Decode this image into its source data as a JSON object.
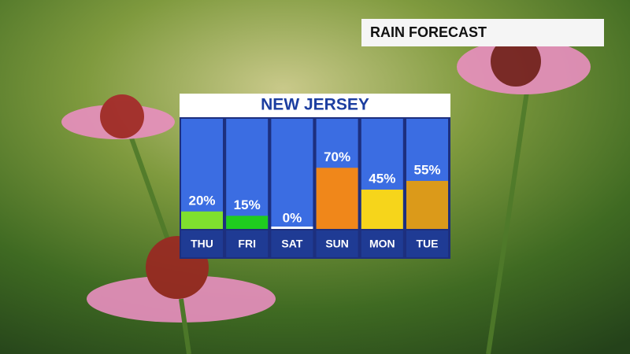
{
  "header": {
    "title": "RAIN FORECAST"
  },
  "chart_data": {
    "type": "bar",
    "title": "NEW JERSEY",
    "categories": [
      "THU",
      "FRI",
      "SAT",
      "SUN",
      "MON",
      "TUE"
    ],
    "values": [
      20,
      15,
      0,
      70,
      45,
      55
    ],
    "value_labels": [
      "20%",
      "15%",
      "0%",
      "70%",
      "45%",
      "55%"
    ],
    "colors": [
      "#7fe02e",
      "#1fcc1f",
      "#ffffff",
      "#f0871a",
      "#f6d51b",
      "#db9a1a"
    ]
  }
}
